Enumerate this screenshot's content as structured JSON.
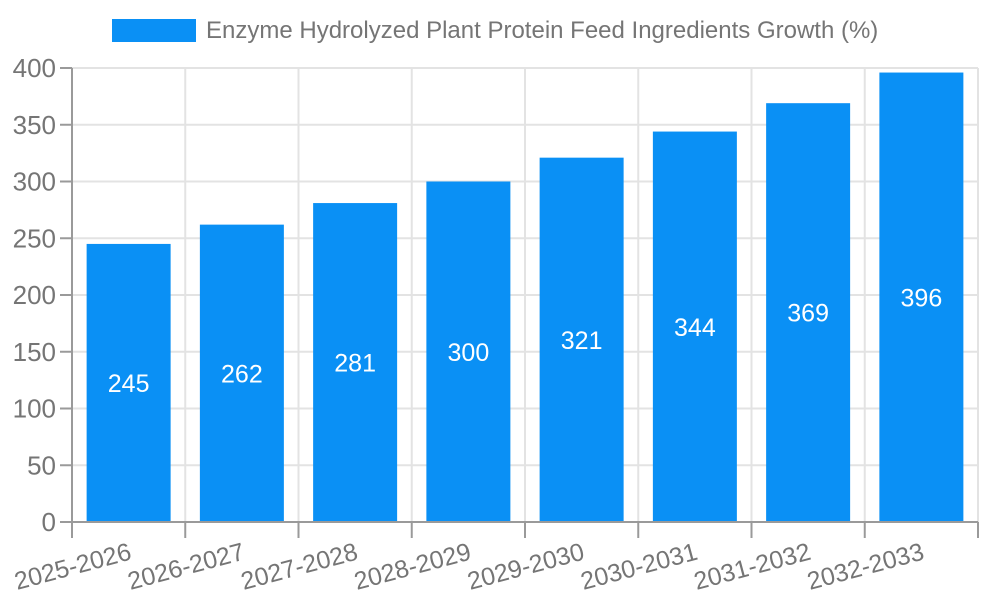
{
  "legend": {
    "label": "Enzyme Hydrolyzed Plant Protein Feed Ingredients Growth (%)"
  },
  "chart_data": {
    "type": "bar",
    "title": "Enzyme Hydrolyzed Plant Protein Feed Ingredients Growth (%)",
    "categories": [
      "2025-2026",
      "2026-2027",
      "2027-2028",
      "2028-2029",
      "2029-2030",
      "2030-2031",
      "2031-2032",
      "2032-2033"
    ],
    "values": [
      245,
      262,
      281,
      300,
      321,
      344,
      369,
      396
    ],
    "xlabel": "",
    "ylabel": "",
    "ylim": [
      0,
      400
    ],
    "yticks": [
      0,
      50,
      100,
      150,
      200,
      250,
      300,
      350,
      400
    ],
    "grid": true,
    "legend_position": "top",
    "value_label_position": "inside-center",
    "x_tick_rotation_deg": -15,
    "style": {
      "bar_color": "#0a90f5",
      "value_label_color": "#ffffff",
      "axis_color": "#9a9a9a",
      "grid_color": "#e3e3e3",
      "tick_label_color": "#757575",
      "legend_text_color": "#757575",
      "background": "#ffffff"
    }
  }
}
